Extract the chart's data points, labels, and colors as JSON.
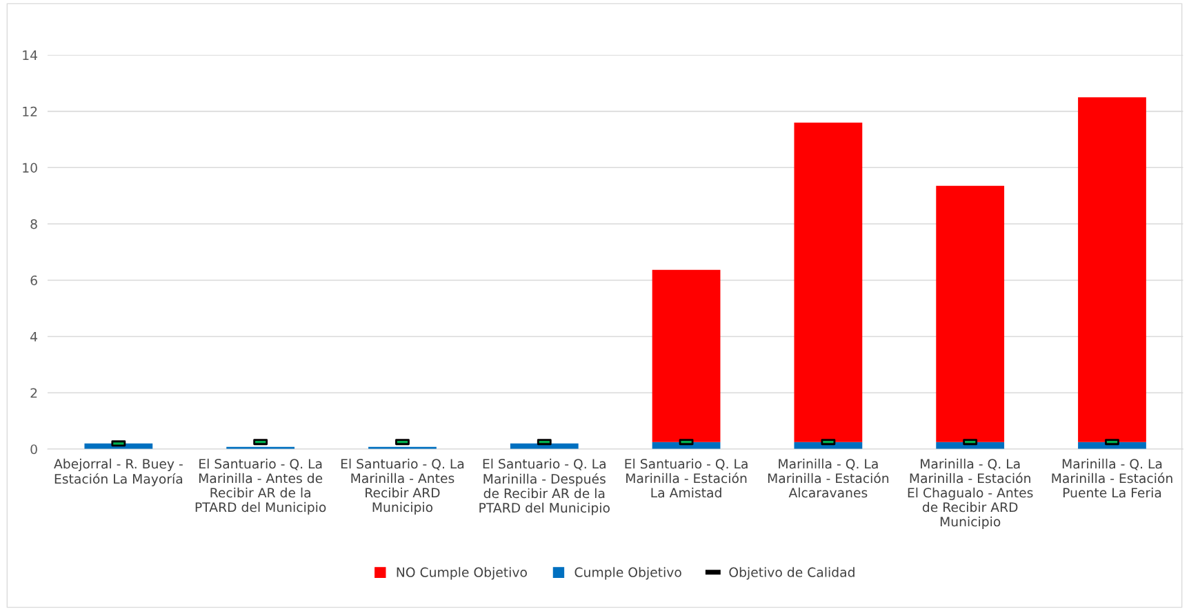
{
  "chart_data": {
    "type": "bar",
    "stacked": true,
    "categories": [
      "Abejorral - R. Buey -\nEstación La Mayoría",
      "El Santuario - Q. La\nMarinilla - Antes de\nRecibir AR de la\nPTARD del Municipio",
      "El Santuario - Q. La\nMarinilla - Antes\nRecibir ARD\nMunicipio",
      "El Santuario - Q. La\nMarinilla - Después\nde Recibir AR de la\nPTARD del Municipio",
      "El Santuario - Q. La\nMarinilla - Estación\nLa Amistad",
      "Marinilla - Q. La\nMarinilla - Estación\nAlcaravanes",
      "Marinilla - Q. La\nMarinilla - Estación\nEl Chagualo - Antes\nde Recibir ARD\nMunicipio",
      "Marinilla - Q. La\nMarinilla - Estación\nPuente La Feria"
    ],
    "series": [
      {
        "name": "Cumple Objetivo",
        "color": "#0070c0",
        "values": [
          0.2,
          0.08,
          0.08,
          0.2,
          0.25,
          0.25,
          0.25,
          0.25
        ]
      },
      {
        "name": "NO Cumple Objetivo",
        "color": "#ff0000",
        "values": [
          0,
          0,
          0,
          0,
          6.12,
          11.35,
          9.1,
          12.25
        ]
      },
      {
        "name": "Objetivo de Calidad",
        "type": "scatter",
        "marker": "square",
        "color": "#00b050",
        "values": [
          0.2,
          0.25,
          0.25,
          0.25,
          0.25,
          0.25,
          0.25,
          0.25
        ]
      }
    ],
    "ylim": [
      0,
      14
    ],
    "yticks": [
      0,
      2,
      4,
      6,
      8,
      10,
      12,
      14
    ],
    "grid": "y",
    "legend": "bottom"
  }
}
